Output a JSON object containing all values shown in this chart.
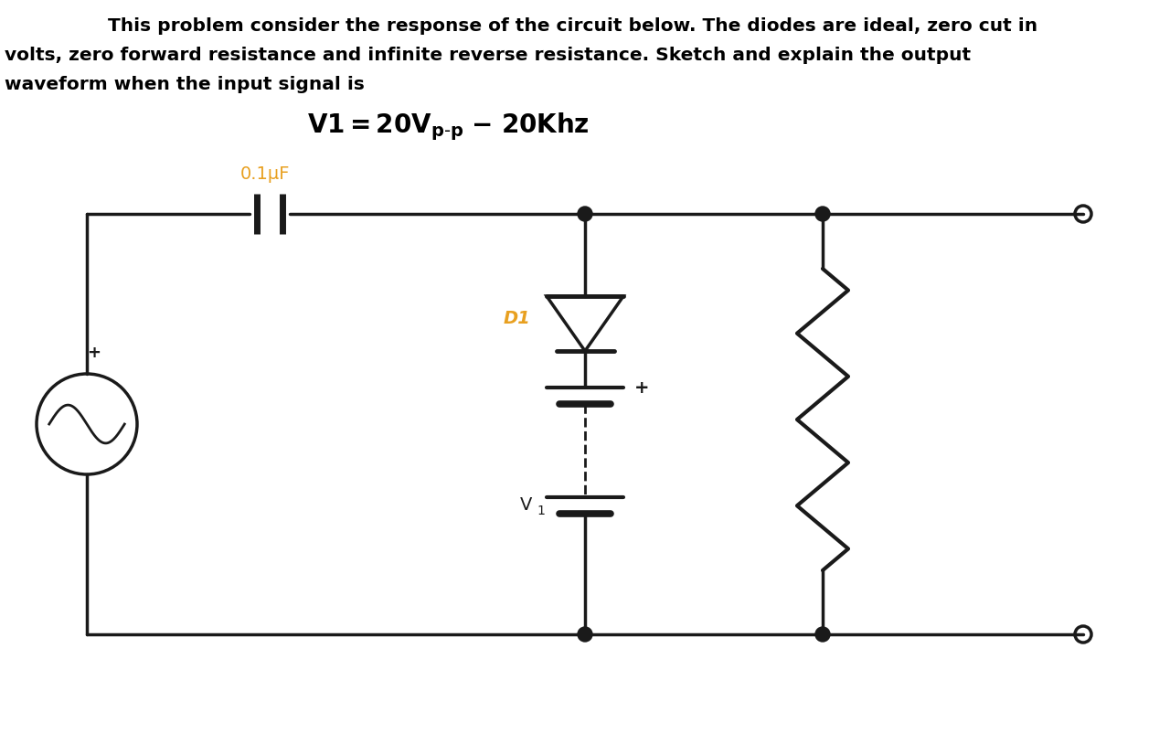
{
  "bg_color": "#ffffff",
  "text_color": "#000000",
  "line_color": "#1a1a1a",
  "label_color": "#e8a020",
  "title_line1": "    This problem consider the response of the circuit below. The diodes are ideal, zero cut in",
  "title_line2": "volts, zero forward resistance and infinite reverse resistance. Sketch and explain the output",
  "title_line3": "waveform when the input signal is",
  "cap_label": "0.1μF",
  "diode_label": "D1",
  "battery_label": "V",
  "battery_label_sub": "1"
}
